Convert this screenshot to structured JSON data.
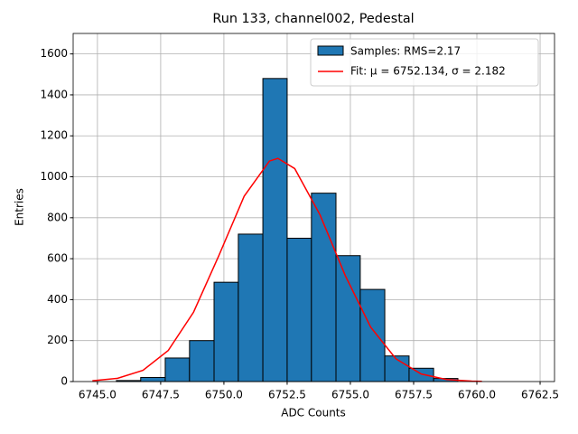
{
  "chart_data": {
    "type": "histogram",
    "title": "Run 133, channel002, Pedestal",
    "xlabel": "ADC Counts",
    "ylabel": "Entries",
    "histogram": {
      "name": "Samples: RMS=2.17",
      "color": "#1f77b4",
      "edgecolor": "#000000",
      "bins": [
        6745.75,
        6746.71,
        6747.68,
        6748.64,
        6749.61,
        6750.57,
        6751.54,
        6752.5,
        6753.46,
        6754.43,
        6755.39,
        6756.36,
        6757.32,
        6758.29,
        6759.25
      ],
      "counts": [
        5,
        20,
        115,
        200,
        485,
        720,
        1480,
        700,
        920,
        615,
        450,
        125,
        65,
        15
      ]
    },
    "fit": {
      "name": "Fit: μ = 6752.134, σ = 2.182",
      "color": "#ff0000",
      "x": [
        6744.8,
        6745.8,
        6746.8,
        6747.8,
        6748.8,
        6749.8,
        6750.8,
        6751.8,
        6752.134,
        6752.8,
        6753.8,
        6754.8,
        6755.8,
        6756.8,
        6757.8,
        6758.8,
        6759.8,
        6760.2
      ],
      "values": [
        3.8,
        16,
        55,
        152,
        339,
        615,
        905,
        1077,
        1090,
        1040,
        814,
        517,
        266,
        111,
        37,
        10,
        2.3,
        1.2
      ]
    },
    "xlim": [
      6744.04,
      6763.07
    ],
    "ylim": [
      0,
      1700
    ],
    "xticks": [
      {
        "value": 6745,
        "label": "6745.0"
      },
      {
        "value": 6747.5,
        "label": "6747.5"
      },
      {
        "value": 6750,
        "label": "6750.0"
      },
      {
        "value": 6752.5,
        "label": "6752.5"
      },
      {
        "value": 6755,
        "label": "6755.0"
      },
      {
        "value": 6757.5,
        "label": "6757.5"
      },
      {
        "value": 6760,
        "label": "6760.0"
      },
      {
        "value": 6762.5,
        "label": "6762.5"
      }
    ],
    "yticks": [
      0,
      200,
      400,
      600,
      800,
      1000,
      1200,
      1400,
      1600
    ],
    "grid": true,
    "legend": "upper right"
  }
}
